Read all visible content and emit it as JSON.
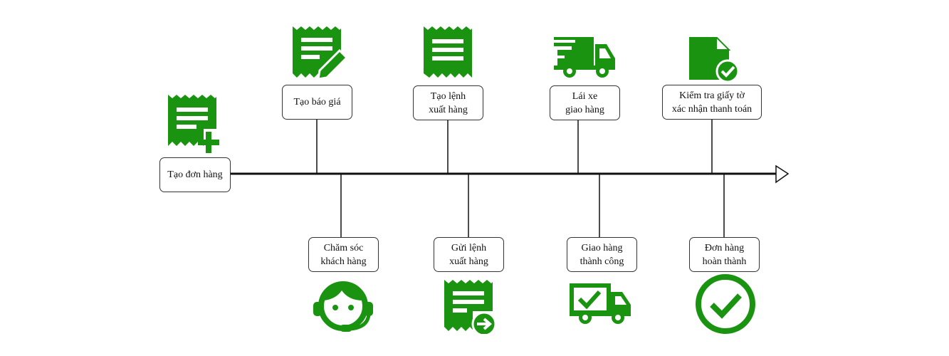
{
  "accent_color": "#1a9410",
  "steps": {
    "create_order": {
      "lines": [
        "Tạo đơn hàng"
      ],
      "icon": "receipt-plus-icon"
    },
    "create_quote": {
      "lines": [
        "Tạo báo giá"
      ],
      "icon": "receipt-edit-icon"
    },
    "customer_care": {
      "lines": [
        "Chăm sóc",
        "khách hàng"
      ],
      "icon": "headset-agent-icon"
    },
    "create_export": {
      "lines": [
        "Tạo lệnh",
        "xuất hàng"
      ],
      "icon": "receipt-lines-icon"
    },
    "send_export": {
      "lines": [
        "Gửi lệnh",
        "xuất hàng"
      ],
      "icon": "receipt-arrow-icon"
    },
    "drive": {
      "lines": [
        "Lái xe",
        "giao hàng"
      ],
      "icon": "delivery-truck-icon"
    },
    "delivered": {
      "lines": [
        "Giao hàng",
        "thành công"
      ],
      "icon": "truck-check-icon"
    },
    "verify_payment": {
      "lines": [
        "Kiểm tra giấy tờ",
        "xác nhận thanh toán"
      ],
      "icon": "document-check-icon"
    },
    "order_done": {
      "lines": [
        "Đơn hàng",
        "hoàn thành"
      ],
      "icon": "check-circle-icon"
    }
  }
}
